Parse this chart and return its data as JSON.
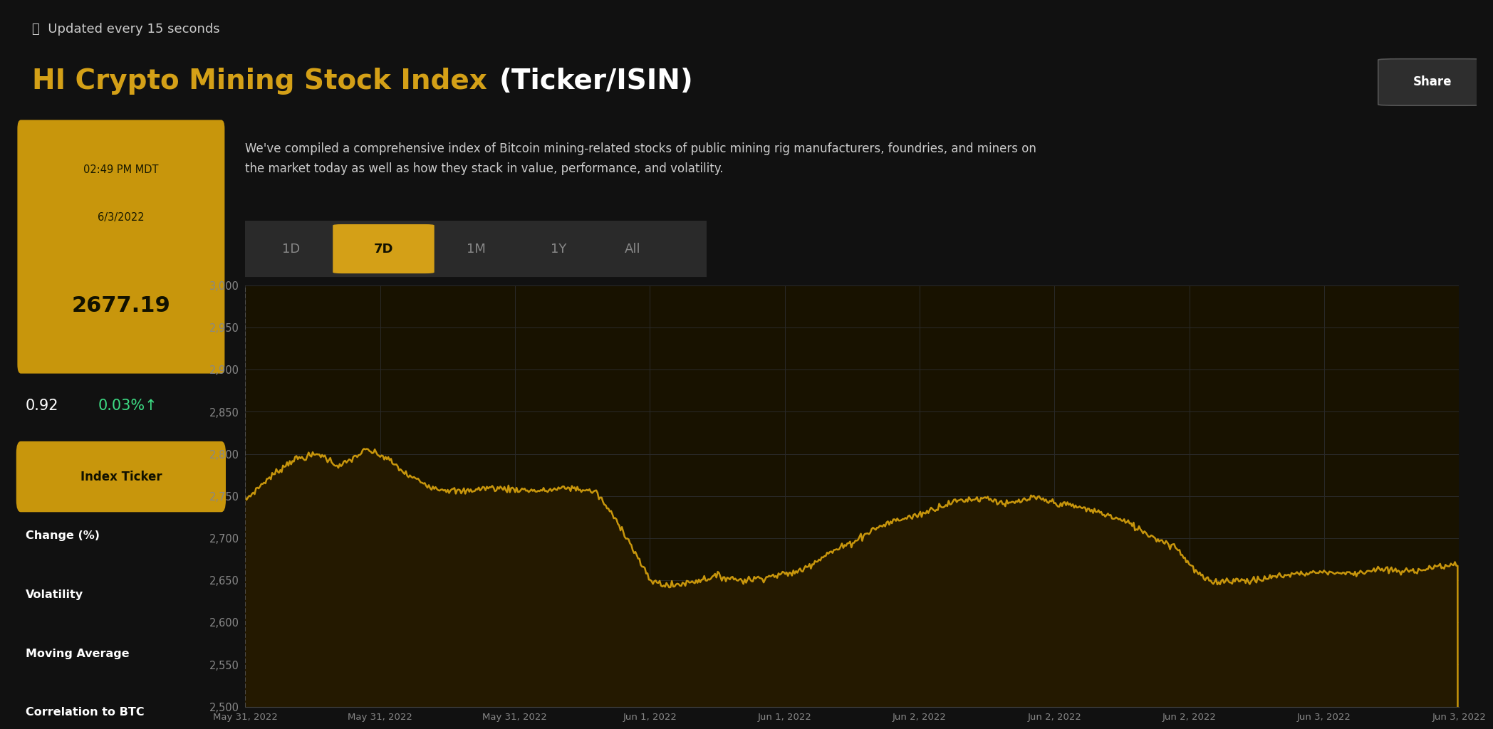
{
  "background_color": "#111111",
  "title_yellow": "#D4A017",
  "title_white": "#ffffff",
  "gold_line": "#C8960C",
  "gold_fill_top": "#2a1f00",
  "gold_fill_bot": "#111111",
  "grid_color": "#2a2a2a",
  "text_color": "#ffffff",
  "text_gray": "#888888",
  "green_color": "#3ddc84",
  "update_text": "  Updated every 15 seconds",
  "main_title_yellow": "HI Crypto Mining Stock Index ",
  "main_title_white": "(Ticker/ISIN)",
  "share_btn": "Share",
  "timestamp_line1": "02:49 PM MDT",
  "timestamp_line2": "6/3/2022",
  "index_value": "2677.19",
  "change_val": "0.92",
  "change_pct": "0.03%↑",
  "description": "We've compiled a comprehensive index of Bitcoin mining-related stocks of public mining rig manufacturers, foundries, and miners on\nthe market today as well as how they stack in value, performance, and volatility.",
  "tabs": [
    "1D",
    "7D",
    "1M",
    "1Y",
    "All"
  ],
  "active_tab": "7D",
  "sidebar_items": [
    "Index Ticker",
    "Change (%)",
    "Volatility",
    "Moving Average",
    "Correlation to BTC"
  ],
  "active_sidebar": "Index Ticker",
  "ylim": [
    2500,
    3000
  ],
  "yticks": [
    2500,
    2550,
    2600,
    2650,
    2700,
    2750,
    2800,
    2850,
    2900,
    2950,
    3000
  ],
  "xtick_labels": [
    "May 31, 2022",
    "May 31, 2022",
    "May 31, 2022",
    "Jun 1, 2022",
    "Jun 1, 2022",
    "Jun 2, 2022",
    "Jun 2, 2022",
    "Jun 2, 2022",
    "Jun 3, 2022",
    "Jun 3, 2022"
  ]
}
